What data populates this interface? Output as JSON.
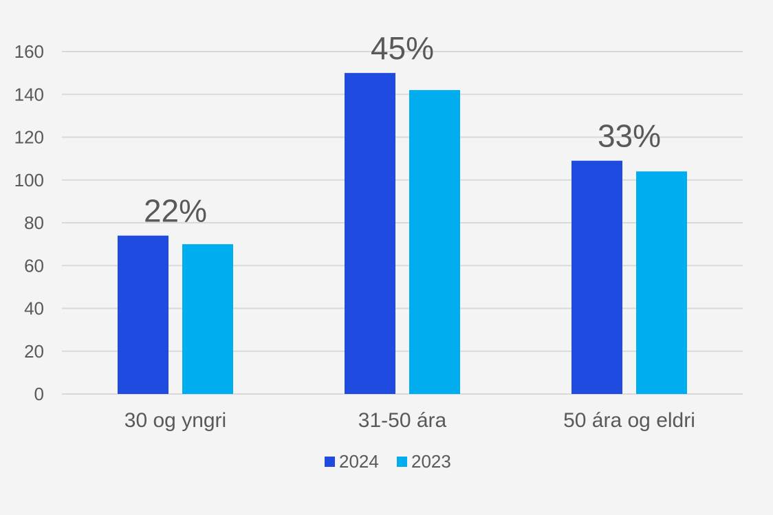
{
  "chart_data": {
    "type": "bar",
    "title": "",
    "xlabel": "",
    "ylabel": "",
    "categories": [
      "30 og yngri",
      "31-50 ára",
      "50 ára og eldri"
    ],
    "series": [
      {
        "name": "2024",
        "color": "#1f4be0",
        "values": [
          74,
          150,
          109
        ]
      },
      {
        "name": "2023",
        "color": "#00aeef",
        "values": [
          70,
          142,
          104
        ]
      }
    ],
    "annotations": [
      "22%",
      "45%",
      "33%"
    ],
    "yticks": [
      0,
      20,
      40,
      60,
      80,
      100,
      120,
      140,
      160
    ],
    "ylim": [
      0,
      160
    ],
    "grid": true,
    "legend": "bottom"
  }
}
